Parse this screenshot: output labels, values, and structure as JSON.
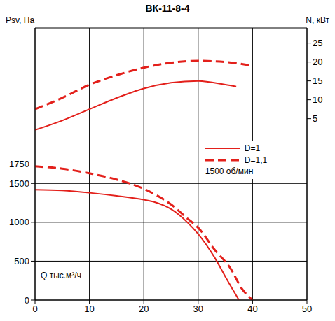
{
  "chart_data": {
    "type": "line",
    "title": "ВК-11-8-4",
    "y_label": "Psv, Па",
    "y2_label": "N, кВт",
    "x_label": "Q тыс.м³/ч",
    "annotation": "1500 об/мин",
    "xlim": [
      0,
      50
    ],
    "xticks": [
      0,
      10,
      20,
      30,
      40,
      50
    ],
    "ylim": [
      0,
      3500
    ],
    "yticks": [
      0,
      500,
      1000,
      1500,
      1750
    ],
    "y2lim": [
      -43,
      29
    ],
    "y2ticks": [
      5,
      10,
      15,
      20,
      25
    ],
    "grid": true,
    "legend": "right",
    "series": [
      {
        "name": "D=1",
        "color": "#e3201b",
        "line_style": "solid",
        "axis": "y",
        "x": [
          0,
          5,
          10,
          15,
          20,
          22,
          25,
          28,
          30,
          33,
          35,
          37.5
        ],
        "values": [
          1420,
          1410,
          1380,
          1340,
          1290,
          1260,
          1170,
          1000,
          850,
          550,
          300,
          0
        ]
      },
      {
        "name": "D=1,1",
        "color": "#e3201b",
        "line_style": "dashed",
        "axis": "y",
        "x": [
          0,
          5,
          10,
          15,
          20,
          25,
          28,
          30,
          33,
          36,
          38,
          40
        ],
        "values": [
          1720,
          1690,
          1630,
          1550,
          1430,
          1230,
          1050,
          930,
          650,
          400,
          150,
          0
        ]
      },
      {
        "name": "D=1",
        "color": "#e3201b",
        "line_style": "solid",
        "axis": "y2",
        "x": [
          0,
          5,
          10,
          15,
          20,
          25,
          30,
          35,
          37
        ],
        "values": [
          2,
          4.5,
          7.5,
          10.5,
          13,
          14.5,
          15,
          14,
          13.5
        ]
      },
      {
        "name": "D=1,1",
        "color": "#e3201b",
        "line_style": "dashed",
        "axis": "y2",
        "x": [
          0,
          5,
          10,
          15,
          20,
          25,
          30,
          35,
          40
        ],
        "values": [
          7.5,
          10.5,
          14,
          16.5,
          18.5,
          19.8,
          20.3,
          20,
          19
        ]
      }
    ]
  }
}
